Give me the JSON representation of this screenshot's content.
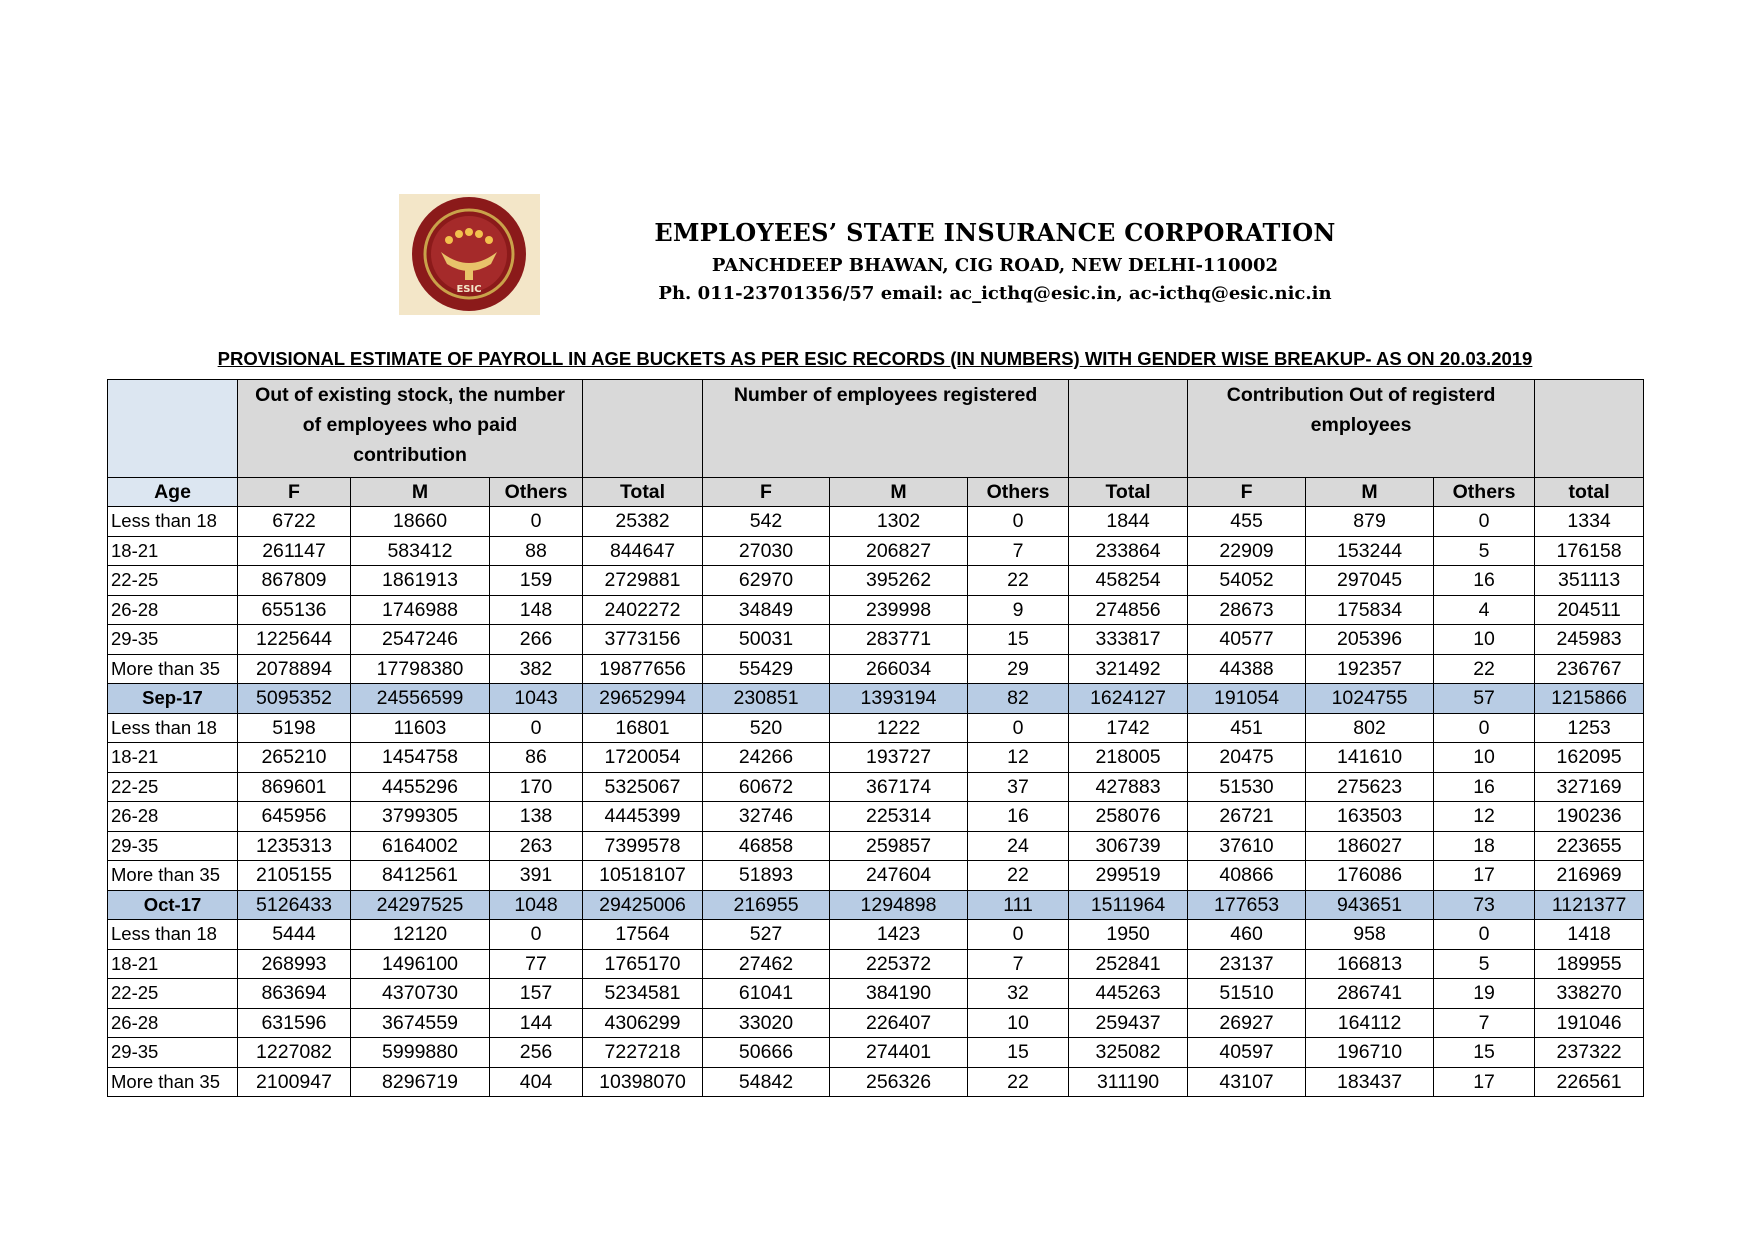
{
  "header": {
    "org_name": "EMPLOYEES’ STATE INSURANCE CORPORATION",
    "address": "PANCHDEEP BHAWAN, CIG ROAD, NEW DELHI-110002",
    "contact": "Ph. 011-23701356/57 email: ac_icthq@esic.in, ac-icthq@esic.nic.in",
    "logo_text": "ESIC",
    "logo_colors": {
      "outer": "#8b1a1a",
      "ring": "#c9a24a"
    }
  },
  "title": "PROVISIONAL ESTIMATE OF PAYROLL IN AGE BUCKETS AS PER ESIC RECORDS (IN NUMBERS) WITH GENDER WISE BREAKUP- AS ON 20.03.2019",
  "table": {
    "group_headers": {
      "paid": "Out of existing stock, the number of employees who paid contribution",
      "registered": "Number of employees registered",
      "contribution": "Contribution  Out of  registerd employees"
    },
    "columns": [
      "Age",
      "F",
      "M",
      "Others",
      "Total",
      "F",
      "M",
      "Others",
      "Total",
      "F",
      "M",
      "Others",
      "total"
    ],
    "rows": [
      {
        "type": "data",
        "cells": [
          "Less than 18",
          "6722",
          "18660",
          "0",
          "25382",
          "542",
          "1302",
          "0",
          "1844",
          "455",
          "879",
          "0",
          "1334"
        ]
      },
      {
        "type": "data",
        "cells": [
          "18-21",
          "261147",
          "583412",
          "88",
          "844647",
          "27030",
          "206827",
          "7",
          "233864",
          "22909",
          "153244",
          "5",
          "176158"
        ]
      },
      {
        "type": "data",
        "cells": [
          "22-25",
          "867809",
          "1861913",
          "159",
          "2729881",
          "62970",
          "395262",
          "22",
          "458254",
          "54052",
          "297045",
          "16",
          "351113"
        ]
      },
      {
        "type": "data",
        "cells": [
          "26-28",
          "655136",
          "1746988",
          "148",
          "2402272",
          "34849",
          "239998",
          "9",
          "274856",
          "28673",
          "175834",
          "4",
          "204511"
        ]
      },
      {
        "type": "data",
        "cells": [
          "29-35",
          "1225644",
          "2547246",
          "266",
          "3773156",
          "50031",
          "283771",
          "15",
          "333817",
          "40577",
          "205396",
          "10",
          "245983"
        ]
      },
      {
        "type": "data",
        "cells": [
          "More than 35",
          "2078894",
          "17798380",
          "382",
          "19877656",
          "55429",
          "266034",
          "29",
          "321492",
          "44388",
          "192357",
          "22",
          "236767"
        ]
      },
      {
        "type": "total",
        "cells": [
          "Sep-17",
          "5095352",
          "24556599",
          "1043",
          "29652994",
          "230851",
          "1393194",
          "82",
          "1624127",
          "191054",
          "1024755",
          "57",
          "1215866"
        ]
      },
      {
        "type": "data",
        "cells": [
          "Less than 18",
          "5198",
          "11603",
          "0",
          "16801",
          "520",
          "1222",
          "0",
          "1742",
          "451",
          "802",
          "0",
          "1253"
        ]
      },
      {
        "type": "data",
        "cells": [
          "18-21",
          "265210",
          "1454758",
          "86",
          "1720054",
          "24266",
          "193727",
          "12",
          "218005",
          "20475",
          "141610",
          "10",
          "162095"
        ]
      },
      {
        "type": "data",
        "cells": [
          "22-25",
          "869601",
          "4455296",
          "170",
          "5325067",
          "60672",
          "367174",
          "37",
          "427883",
          "51530",
          "275623",
          "16",
          "327169"
        ]
      },
      {
        "type": "data",
        "cells": [
          "26-28",
          "645956",
          "3799305",
          "138",
          "4445399",
          "32746",
          "225314",
          "16",
          "258076",
          "26721",
          "163503",
          "12",
          "190236"
        ]
      },
      {
        "type": "data",
        "cells": [
          "29-35",
          "1235313",
          "6164002",
          "263",
          "7399578",
          "46858",
          "259857",
          "24",
          "306739",
          "37610",
          "186027",
          "18",
          "223655"
        ]
      },
      {
        "type": "data",
        "cells": [
          "More than 35",
          "2105155",
          "8412561",
          "391",
          "10518107",
          "51893",
          "247604",
          "22",
          "299519",
          "40866",
          "176086",
          "17",
          "216969"
        ]
      },
      {
        "type": "total",
        "cells": [
          "Oct-17",
          "5126433",
          "24297525",
          "1048",
          "29425006",
          "216955",
          "1294898",
          "111",
          "1511964",
          "177653",
          "943651",
          "73",
          "1121377"
        ]
      },
      {
        "type": "data",
        "cells": [
          "Less than 18",
          "5444",
          "12120",
          "0",
          "17564",
          "527",
          "1423",
          "0",
          "1950",
          "460",
          "958",
          "0",
          "1418"
        ]
      },
      {
        "type": "data",
        "cells": [
          "18-21",
          "268993",
          "1496100",
          "77",
          "1765170",
          "27462",
          "225372",
          "7",
          "252841",
          "23137",
          "166813",
          "5",
          "189955"
        ]
      },
      {
        "type": "data",
        "cells": [
          "22-25",
          "863694",
          "4370730",
          "157",
          "5234581",
          "61041",
          "384190",
          "32",
          "445263",
          "51510",
          "286741",
          "19",
          "338270"
        ]
      },
      {
        "type": "data",
        "cells": [
          "26-28",
          "631596",
          "3674559",
          "144",
          "4306299",
          "33020",
          "226407",
          "10",
          "259437",
          "26927",
          "164112",
          "7",
          "191046"
        ]
      },
      {
        "type": "data",
        "cells": [
          "29-35",
          "1227082",
          "5999880",
          "256",
          "7227218",
          "50666",
          "274401",
          "15",
          "325082",
          "40597",
          "196710",
          "15",
          "237322"
        ]
      },
      {
        "type": "data",
        "cells": [
          "More than 35",
          "2100947",
          "8296719",
          "404",
          "10398070",
          "54842",
          "256326",
          "22",
          "311190",
          "43107",
          "183437",
          "17",
          "226561"
        ]
      }
    ],
    "colors": {
      "header_gray": "#d9d9d9",
      "age_header": "#dce6f1",
      "total_row": "#b8cce4"
    }
  }
}
